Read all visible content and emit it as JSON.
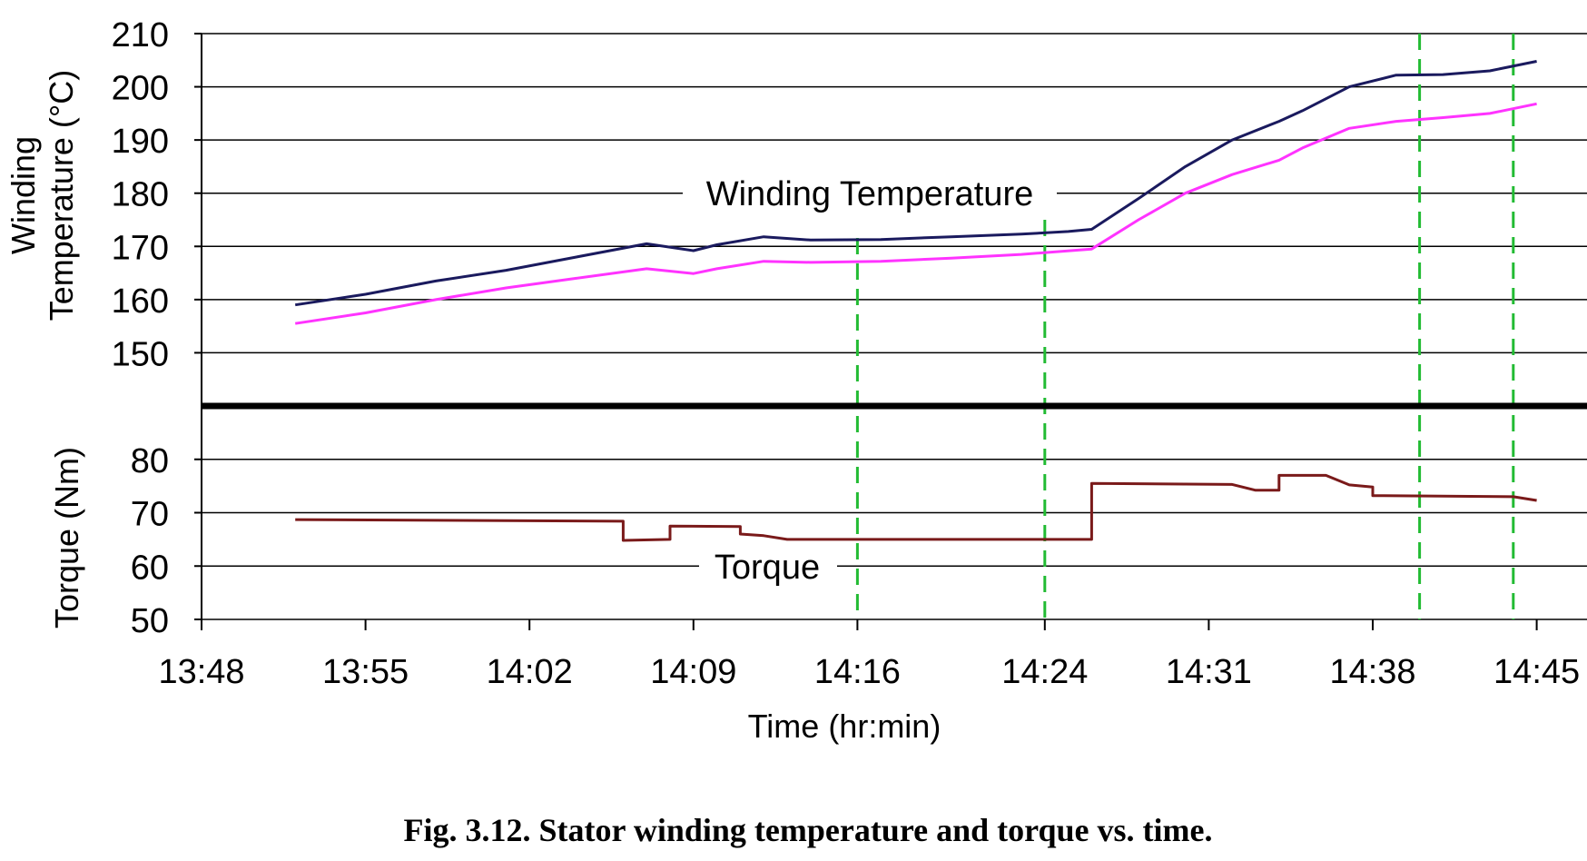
{
  "chart_data": {
    "type": "line",
    "xlabel": "Time (hr:min)",
    "x_ticks": [
      "13:48",
      "13:55",
      "14:02",
      "14:09",
      "14:16",
      "14:24",
      "14:31",
      "14:38",
      "14:45"
    ],
    "x_range": [
      "13:48",
      "14:51"
    ],
    "marker_times": [
      "14:16",
      "14:24",
      "14:40",
      "14:44"
    ],
    "marker_color": "#22bb33",
    "panels": [
      {
        "name": "temperature",
        "ylabel_line1": "Winding",
        "ylabel_line2": "Temperature (°C)",
        "ylim": [
          140,
          210
        ],
        "y_ticks": [
          150,
          160,
          170,
          180,
          190,
          200,
          210
        ],
        "grid": true,
        "annotation": "Winding Temperature",
        "series": [
          {
            "color": "#1a1a5e",
            "points": [
              [
                "13:52",
                159
              ],
              [
                "13:55",
                161
              ],
              [
                "13:58",
                163.5
              ],
              [
                "14:01",
                165.5
              ],
              [
                "14:04",
                168
              ],
              [
                "14:07",
                170.5
              ],
              [
                "14:09",
                169.2
              ],
              [
                "14:10",
                170.3
              ],
              [
                "14:12",
                171.8
              ],
              [
                "14:14",
                171.2
              ],
              [
                "14:17",
                171.3
              ],
              [
                "14:20",
                171.8
              ],
              [
                "14:23",
                172.3
              ],
              [
                "14:25",
                172.8
              ],
              [
                "14:26",
                173.2
              ],
              [
                "14:28",
                179
              ],
              [
                "14:30",
                185
              ],
              [
                "14:32",
                190
              ],
              [
                "14:34",
                193.5
              ],
              [
                "14:35",
                195.5
              ],
              [
                "14:37",
                200
              ],
              [
                "14:39",
                202.2
              ],
              [
                "14:41",
                202.3
              ],
              [
                "14:43",
                203
              ],
              [
                "14:45",
                204.8
              ]
            ]
          },
          {
            "color": "#ff33ff",
            "points": [
              [
                "13:52",
                155.5
              ],
              [
                "13:55",
                157.5
              ],
              [
                "13:58",
                160
              ],
              [
                "14:01",
                162.2
              ],
              [
                "14:04",
                164
              ],
              [
                "14:07",
                165.8
              ],
              [
                "14:09",
                164.9
              ],
              [
                "14:10",
                165.8
              ],
              [
                "14:12",
                167.2
              ],
              [
                "14:14",
                167
              ],
              [
                "14:17",
                167.2
              ],
              [
                "14:20",
                167.8
              ],
              [
                "14:23",
                168.5
              ],
              [
                "14:26",
                169.5
              ],
              [
                "14:28",
                175
              ],
              [
                "14:30",
                180
              ],
              [
                "14:32",
                183.5
              ],
              [
                "14:34",
                186.2
              ],
              [
                "14:35",
                188.5
              ],
              [
                "14:37",
                192.2
              ],
              [
                "14:39",
                193.5
              ],
              [
                "14:41",
                194.2
              ],
              [
                "14:43",
                195
              ],
              [
                "14:45",
                196.8
              ]
            ]
          }
        ]
      },
      {
        "name": "torque",
        "ylabel": "Torque (Nm)",
        "ylim": [
          50,
          90
        ],
        "y_ticks": [
          50,
          60,
          70,
          80
        ],
        "grid": true,
        "annotation": "Torque",
        "series": [
          {
            "color": "#7a1a1a",
            "points": [
              [
                "13:52",
                68.7
              ],
              [
                "14:06",
                68.4
              ],
              [
                "14:06",
                64.8
              ],
              [
                "14:08",
                65
              ],
              [
                "14:08",
                67.5
              ],
              [
                "14:11",
                67.4
              ],
              [
                "14:11",
                66
              ],
              [
                "14:12",
                65.7
              ],
              [
                "14:13",
                65
              ],
              [
                "14:26",
                65
              ],
              [
                "14:26",
                75.5
              ],
              [
                "14:32",
                75.3
              ],
              [
                "14:33",
                74.2
              ],
              [
                "14:34",
                74.2
              ],
              [
                "14:34",
                77
              ],
              [
                "14:36",
                77
              ],
              [
                "14:37",
                75.2
              ],
              [
                "14:38",
                74.8
              ],
              [
                "14:38",
                73.2
              ],
              [
                "14:44",
                73
              ],
              [
                "14:45",
                72.3
              ]
            ]
          }
        ]
      }
    ]
  },
  "caption": "Fig. 3.12.  Stator winding temperature and torque vs. time."
}
